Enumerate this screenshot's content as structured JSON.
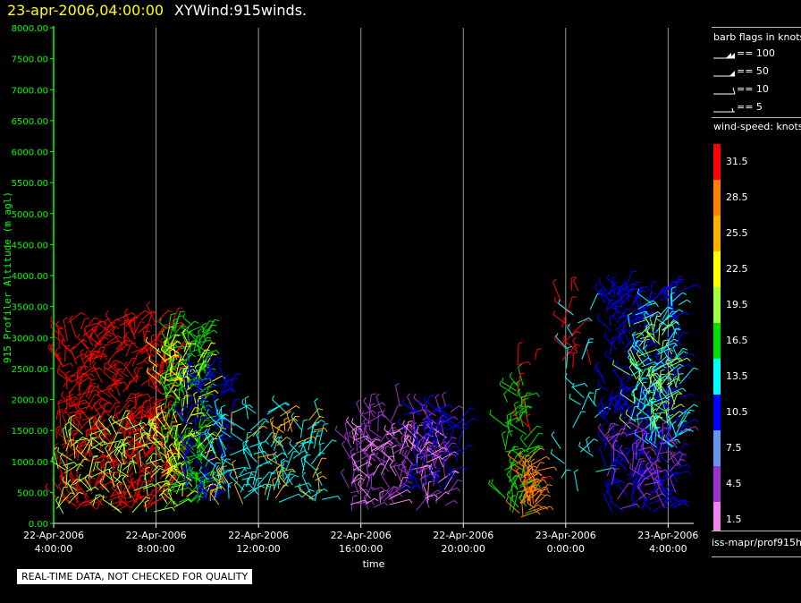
{
  "header": {
    "date_title": "23-apr-2006,04:00:00",
    "main_title": "XYWind:915winds."
  },
  "barb_legend": {
    "title": "barb flags in knots",
    "items": [
      {
        "label": "== 100"
      },
      {
        "label": "== 50"
      },
      {
        "label": "== 10"
      },
      {
        "label": "== 5"
      }
    ]
  },
  "speed_legend": {
    "title": "wind-speed: knots",
    "bins": [
      {
        "label": "31.5",
        "color": "#ff0000"
      },
      {
        "label": "28.5",
        "color": "#ff8000"
      },
      {
        "label": "25.5",
        "color": "#ffb000"
      },
      {
        "label": "22.5",
        "color": "#ffff00"
      },
      {
        "label": "19.5",
        "color": "#a0ff40"
      },
      {
        "label": "16.5",
        "color": "#00e000"
      },
      {
        "label": "13.5",
        "color": "#00ffff"
      },
      {
        "label": "10.5",
        "color": "#0000ff"
      },
      {
        "label": "7.5",
        "color": "#6495ed"
      },
      {
        "label": "4.5",
        "color": "#9932cc"
      },
      {
        "label": "1.5",
        "color": "#ee82ee"
      }
    ]
  },
  "footer": {
    "source": "iss-mapr/prof915h",
    "quality_note": "REAL-TIME DATA, NOT CHECKED FOR QUALITY"
  },
  "chart_data": {
    "type": "scatter",
    "ylabel": "915 Profiler Altitude (m agl)",
    "xlabel": "time",
    "ylim": [
      0,
      8000
    ],
    "y_ticks": [
      "0.00",
      "500.00",
      "1000.00",
      "1500.00",
      "2000.00",
      "2500.00",
      "3000.00",
      "3500.00",
      "4000.00",
      "4500.00",
      "5000.00",
      "5500.00",
      "6000.00",
      "6500.00",
      "7000.00",
      "7500.00",
      "8000.00"
    ],
    "x_range_hours": [
      4,
      29
    ],
    "x_ticks": [
      {
        "hour": 4,
        "date": "22-Apr-2006",
        "time": "4:00:00"
      },
      {
        "hour": 8,
        "date": "22-Apr-2006",
        "time": "8:00:00"
      },
      {
        "hour": 12,
        "date": "22-Apr-2006",
        "time": "12:00:00"
      },
      {
        "hour": 16,
        "date": "22-Apr-2006",
        "time": "16:00:00"
      },
      {
        "hour": 20,
        "date": "22-Apr-2006",
        "time": "20:00:00"
      },
      {
        "hour": 24,
        "date": "23-Apr-2006",
        "time": "0:00:00"
      },
      {
        "hour": 28,
        "date": "23-Apr-2006",
        "time": "4:00:00"
      }
    ],
    "grid": "vertical",
    "wind_clusters": [
      {
        "x_start": 4.1,
        "x_end": 8.7,
        "alt_min": 200,
        "alt_max": 3300,
        "speed": 31.5,
        "density": 420
      },
      {
        "x_start": 4.1,
        "x_end": 8.9,
        "alt_min": 150,
        "alt_max": 1600,
        "speed": 19.5,
        "density": 120
      },
      {
        "x_start": 8.2,
        "x_end": 10.0,
        "alt_min": 200,
        "alt_max": 3200,
        "speed": 16.5,
        "density": 160
      },
      {
        "x_start": 8.0,
        "x_end": 10.0,
        "alt_min": 400,
        "alt_max": 2900,
        "speed": 22.5,
        "density": 80
      },
      {
        "x_start": 9.0,
        "x_end": 11.0,
        "alt_min": 300,
        "alt_max": 2500,
        "speed": 10.5,
        "density": 70
      },
      {
        "x_start": 10.0,
        "x_end": 14.5,
        "alt_min": 300,
        "alt_max": 1800,
        "speed": 13.5,
        "density": 110
      },
      {
        "x_start": 10.0,
        "x_end": 14.5,
        "alt_min": 300,
        "alt_max": 1800,
        "speed": 25.5,
        "density": 40
      },
      {
        "x_start": 15.5,
        "x_end": 19.5,
        "alt_min": 200,
        "alt_max": 1900,
        "speed": 4.5,
        "density": 140
      },
      {
        "x_start": 15.5,
        "x_end": 19.5,
        "alt_min": 300,
        "alt_max": 1500,
        "speed": 1.5,
        "density": 60
      },
      {
        "x_start": 17.5,
        "x_end": 20.0,
        "alt_min": 500,
        "alt_max": 1900,
        "speed": 10.5,
        "density": 50
      },
      {
        "x_start": 21.6,
        "x_end": 22.6,
        "alt_min": 100,
        "alt_max": 2300,
        "speed": 16.5,
        "density": 60
      },
      {
        "x_start": 22.2,
        "x_end": 22.9,
        "alt_min": 100,
        "alt_max": 1000,
        "speed": 28.5,
        "density": 50
      },
      {
        "x_start": 22.0,
        "x_end": 23.0,
        "alt_min": 300,
        "alt_max": 2700,
        "speed": 31.5,
        "density": 10
      },
      {
        "x_start": 23.8,
        "x_end": 25.0,
        "alt_min": 2500,
        "alt_max": 3800,
        "speed": 31.5,
        "density": 16
      },
      {
        "x_start": 23.8,
        "x_end": 25.2,
        "alt_min": 400,
        "alt_max": 3500,
        "speed": 13.5,
        "density": 25
      },
      {
        "x_start": 25.5,
        "x_end": 28.5,
        "alt_min": 150,
        "alt_max": 3800,
        "speed": 10.5,
        "density": 260
      },
      {
        "x_start": 26.5,
        "x_end": 28.5,
        "alt_min": 1200,
        "alt_max": 3600,
        "speed": 13.5,
        "density": 100
      },
      {
        "x_start": 26.5,
        "x_end": 28.3,
        "alt_min": 1500,
        "alt_max": 3300,
        "speed": 19.5,
        "density": 60
      },
      {
        "x_start": 25.5,
        "x_end": 28.5,
        "alt_min": 200,
        "alt_max": 1500,
        "speed": 4.5,
        "density": 60
      }
    ]
  }
}
